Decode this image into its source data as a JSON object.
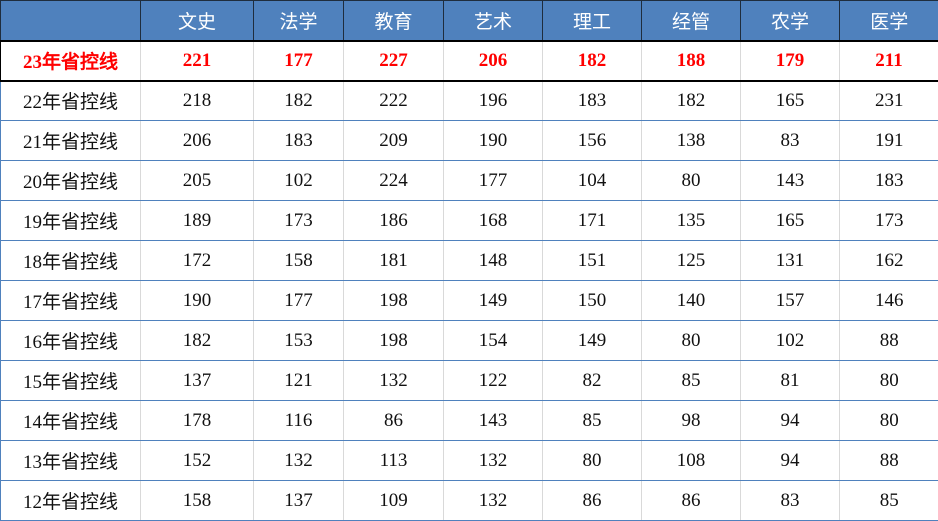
{
  "header": {
    "corner": "",
    "columns": [
      "文史",
      "法学",
      "教育",
      "艺术",
      "理工",
      "经管",
      "农学",
      "医学"
    ]
  },
  "colors": {
    "header_bg": "#4f81bd",
    "highlight_text": "#ff0000"
  },
  "rows": [
    {
      "label": "23年省控线",
      "values": [
        "221",
        "177",
        "227",
        "206",
        "182",
        "188",
        "179",
        "211"
      ],
      "highlight": true
    },
    {
      "label": "22年省控线",
      "values": [
        "218",
        "182",
        "222",
        "196",
        "183",
        "182",
        "165",
        "231"
      ]
    },
    {
      "label": "21年省控线",
      "values": [
        "206",
        "183",
        "209",
        "190",
        "156",
        "138",
        "83",
        "191"
      ]
    },
    {
      "label": "20年省控线",
      "values": [
        "205",
        "102",
        "224",
        "177",
        "104",
        "80",
        "143",
        "183"
      ]
    },
    {
      "label": "19年省控线",
      "values": [
        "189",
        "173",
        "186",
        "168",
        "171",
        "135",
        "165",
        "173"
      ]
    },
    {
      "label": "18年省控线",
      "values": [
        "172",
        "158",
        "181",
        "148",
        "151",
        "125",
        "131",
        "162"
      ]
    },
    {
      "label": "17年省控线",
      "values": [
        "190",
        "177",
        "198",
        "149",
        "150",
        "140",
        "157",
        "146"
      ]
    },
    {
      "label": "16年省控线",
      "values": [
        "182",
        "153",
        "198",
        "154",
        "149",
        "80",
        "102",
        "88"
      ]
    },
    {
      "label": "15年省控线",
      "values": [
        "137",
        "121",
        "132",
        "122",
        "82",
        "85",
        "81",
        "80"
      ]
    },
    {
      "label": "14年省控线",
      "values": [
        "178",
        "116",
        "86",
        "143",
        "85",
        "98",
        "94",
        "80"
      ]
    },
    {
      "label": "13年省控线",
      "values": [
        "152",
        "132",
        "113",
        "132",
        "80",
        "108",
        "94",
        "88"
      ]
    },
    {
      "label": "12年省控线",
      "values": [
        "158",
        "137",
        "109",
        "132",
        "86",
        "86",
        "83",
        "85"
      ]
    }
  ]
}
